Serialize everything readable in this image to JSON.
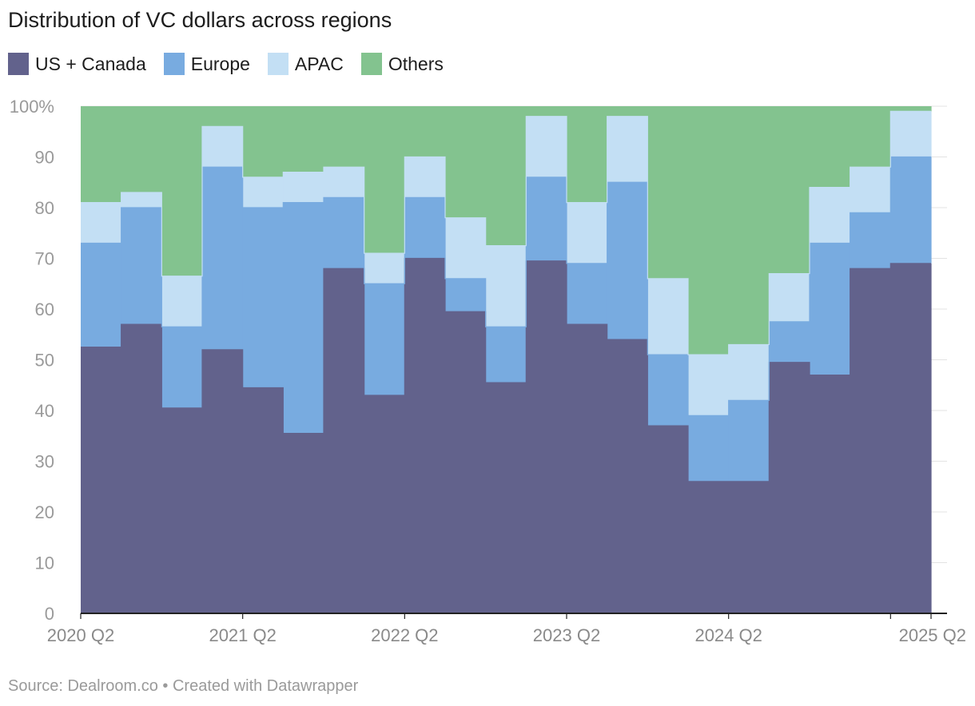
{
  "title": "Distribution of VC dollars across regions",
  "source": "Source: Dealroom.co • Created with Datawrapper",
  "colors": {
    "us_canada": "#62628c",
    "europe": "#78abe0",
    "apac": "#c3dff4",
    "others": "#83c38f"
  },
  "legend": [
    {
      "label": "US + Canada",
      "color": "#62628c"
    },
    {
      "label": "Europe",
      "color": "#78abe0"
    },
    {
      "label": "APAC",
      "color": "#c3dff4"
    },
    {
      "label": "Others",
      "color": "#83c38f"
    }
  ],
  "chart_data": {
    "type": "area",
    "stacked": true,
    "step": true,
    "x": [
      "2020 Q2",
      "2020 Q3",
      "2020 Q4",
      "2021 Q1",
      "2021 Q2",
      "2021 Q3",
      "2021 Q4",
      "2022 Q1",
      "2022 Q2",
      "2022 Q3",
      "2022 Q4",
      "2023 Q1",
      "2023 Q2",
      "2023 Q3",
      "2023 Q4",
      "2024 Q1",
      "2024 Q2",
      "2024 Q3",
      "2024 Q4",
      "2025 Q1",
      "2025 Q2"
    ],
    "x_tick_labels": [
      "2020 Q2",
      "2021 Q2",
      "2022 Q2",
      "2023 Q2",
      "2024 Q2",
      "2025 Q2"
    ],
    "y_tick_labels": [
      "100%",
      "90",
      "80",
      "70",
      "60",
      "50",
      "40",
      "30",
      "20",
      "10",
      "0"
    ],
    "ylim": [
      0,
      100
    ],
    "grid": true,
    "legend_position": "top-left",
    "series": [
      {
        "name": "US + Canada",
        "values": [
          52.5,
          57,
          40.5,
          52,
          44.5,
          35.5,
          68,
          43,
          70,
          59.5,
          45.5,
          69.5,
          57,
          54,
          37,
          26,
          26,
          49.5,
          47,
          68,
          69
        ]
      },
      {
        "name": "Europe",
        "values": [
          20.5,
          23,
          16,
          36,
          35.5,
          45.5,
          14,
          22,
          12,
          6.5,
          11,
          16.5,
          12,
          31,
          14,
          13,
          16,
          8,
          26,
          11,
          21
        ]
      },
      {
        "name": "APAC",
        "values": [
          8,
          3,
          10,
          8,
          6,
          6,
          6,
          6,
          8,
          12,
          16,
          12,
          12,
          13,
          15,
          12,
          11,
          9.5,
          11,
          9,
          9
        ]
      },
      {
        "name": "Others",
        "values": [
          19,
          17,
          33.5,
          4,
          14,
          13,
          12,
          29,
          10,
          22,
          27.5,
          2,
          19,
          2,
          34,
          49,
          47,
          33,
          16,
          12,
          1
        ]
      }
    ]
  }
}
